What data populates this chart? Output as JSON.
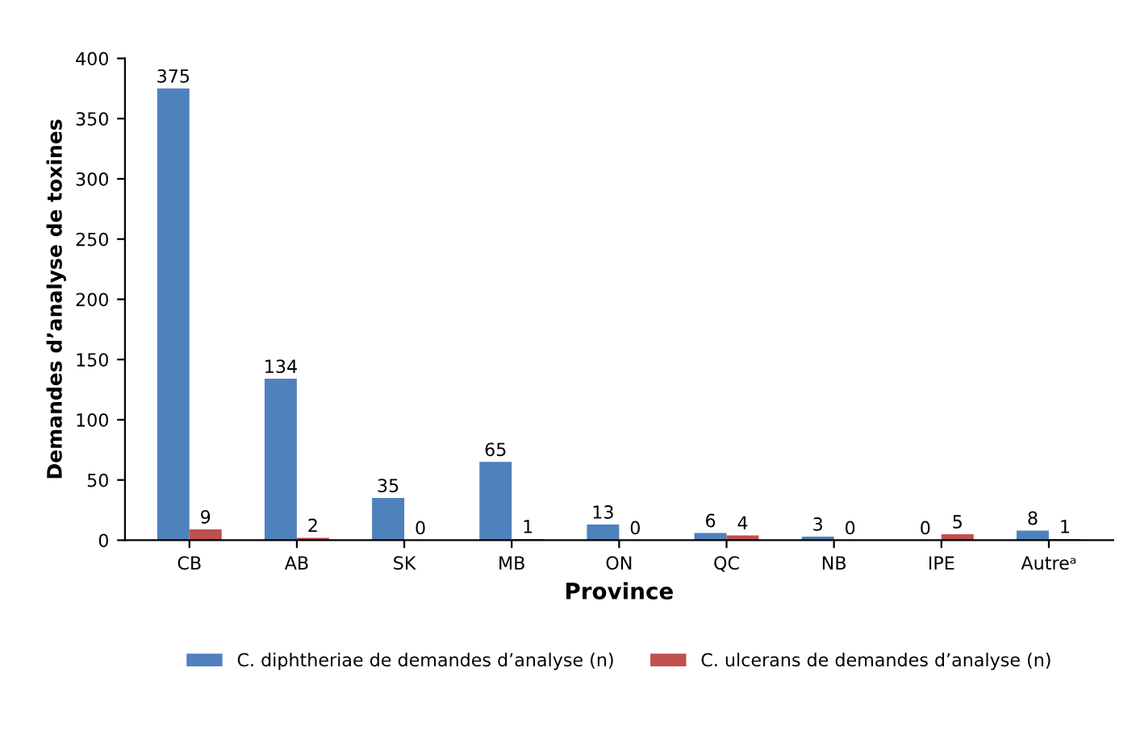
{
  "chart_data": {
    "type": "bar",
    "xlabel": "Province",
    "ylabel": "Demandes d’analyse de toxines",
    "categories": [
      "CB",
      "AB",
      "SK",
      "MB",
      "ON",
      "QC",
      "NB",
      "IPE",
      "Autreᵃ"
    ],
    "series": [
      {
        "name": "C. diphtheriae de demandes d’analyse (n)",
        "color": "#4f81bd",
        "values": [
          375,
          134,
          35,
          65,
          13,
          6,
          3,
          0,
          8
        ]
      },
      {
        "name": "C. ulcerans de demandes d’analyse (n)",
        "color": "#c0504d",
        "values": [
          9,
          2,
          0,
          1,
          0,
          4,
          0,
          5,
          1
        ]
      }
    ],
    "ylim": [
      0,
      400
    ],
    "yticks": [
      0,
      50,
      100,
      150,
      200,
      250,
      300,
      350,
      400
    ],
    "grid": false,
    "legend": "bottom",
    "data_labels": true
  }
}
